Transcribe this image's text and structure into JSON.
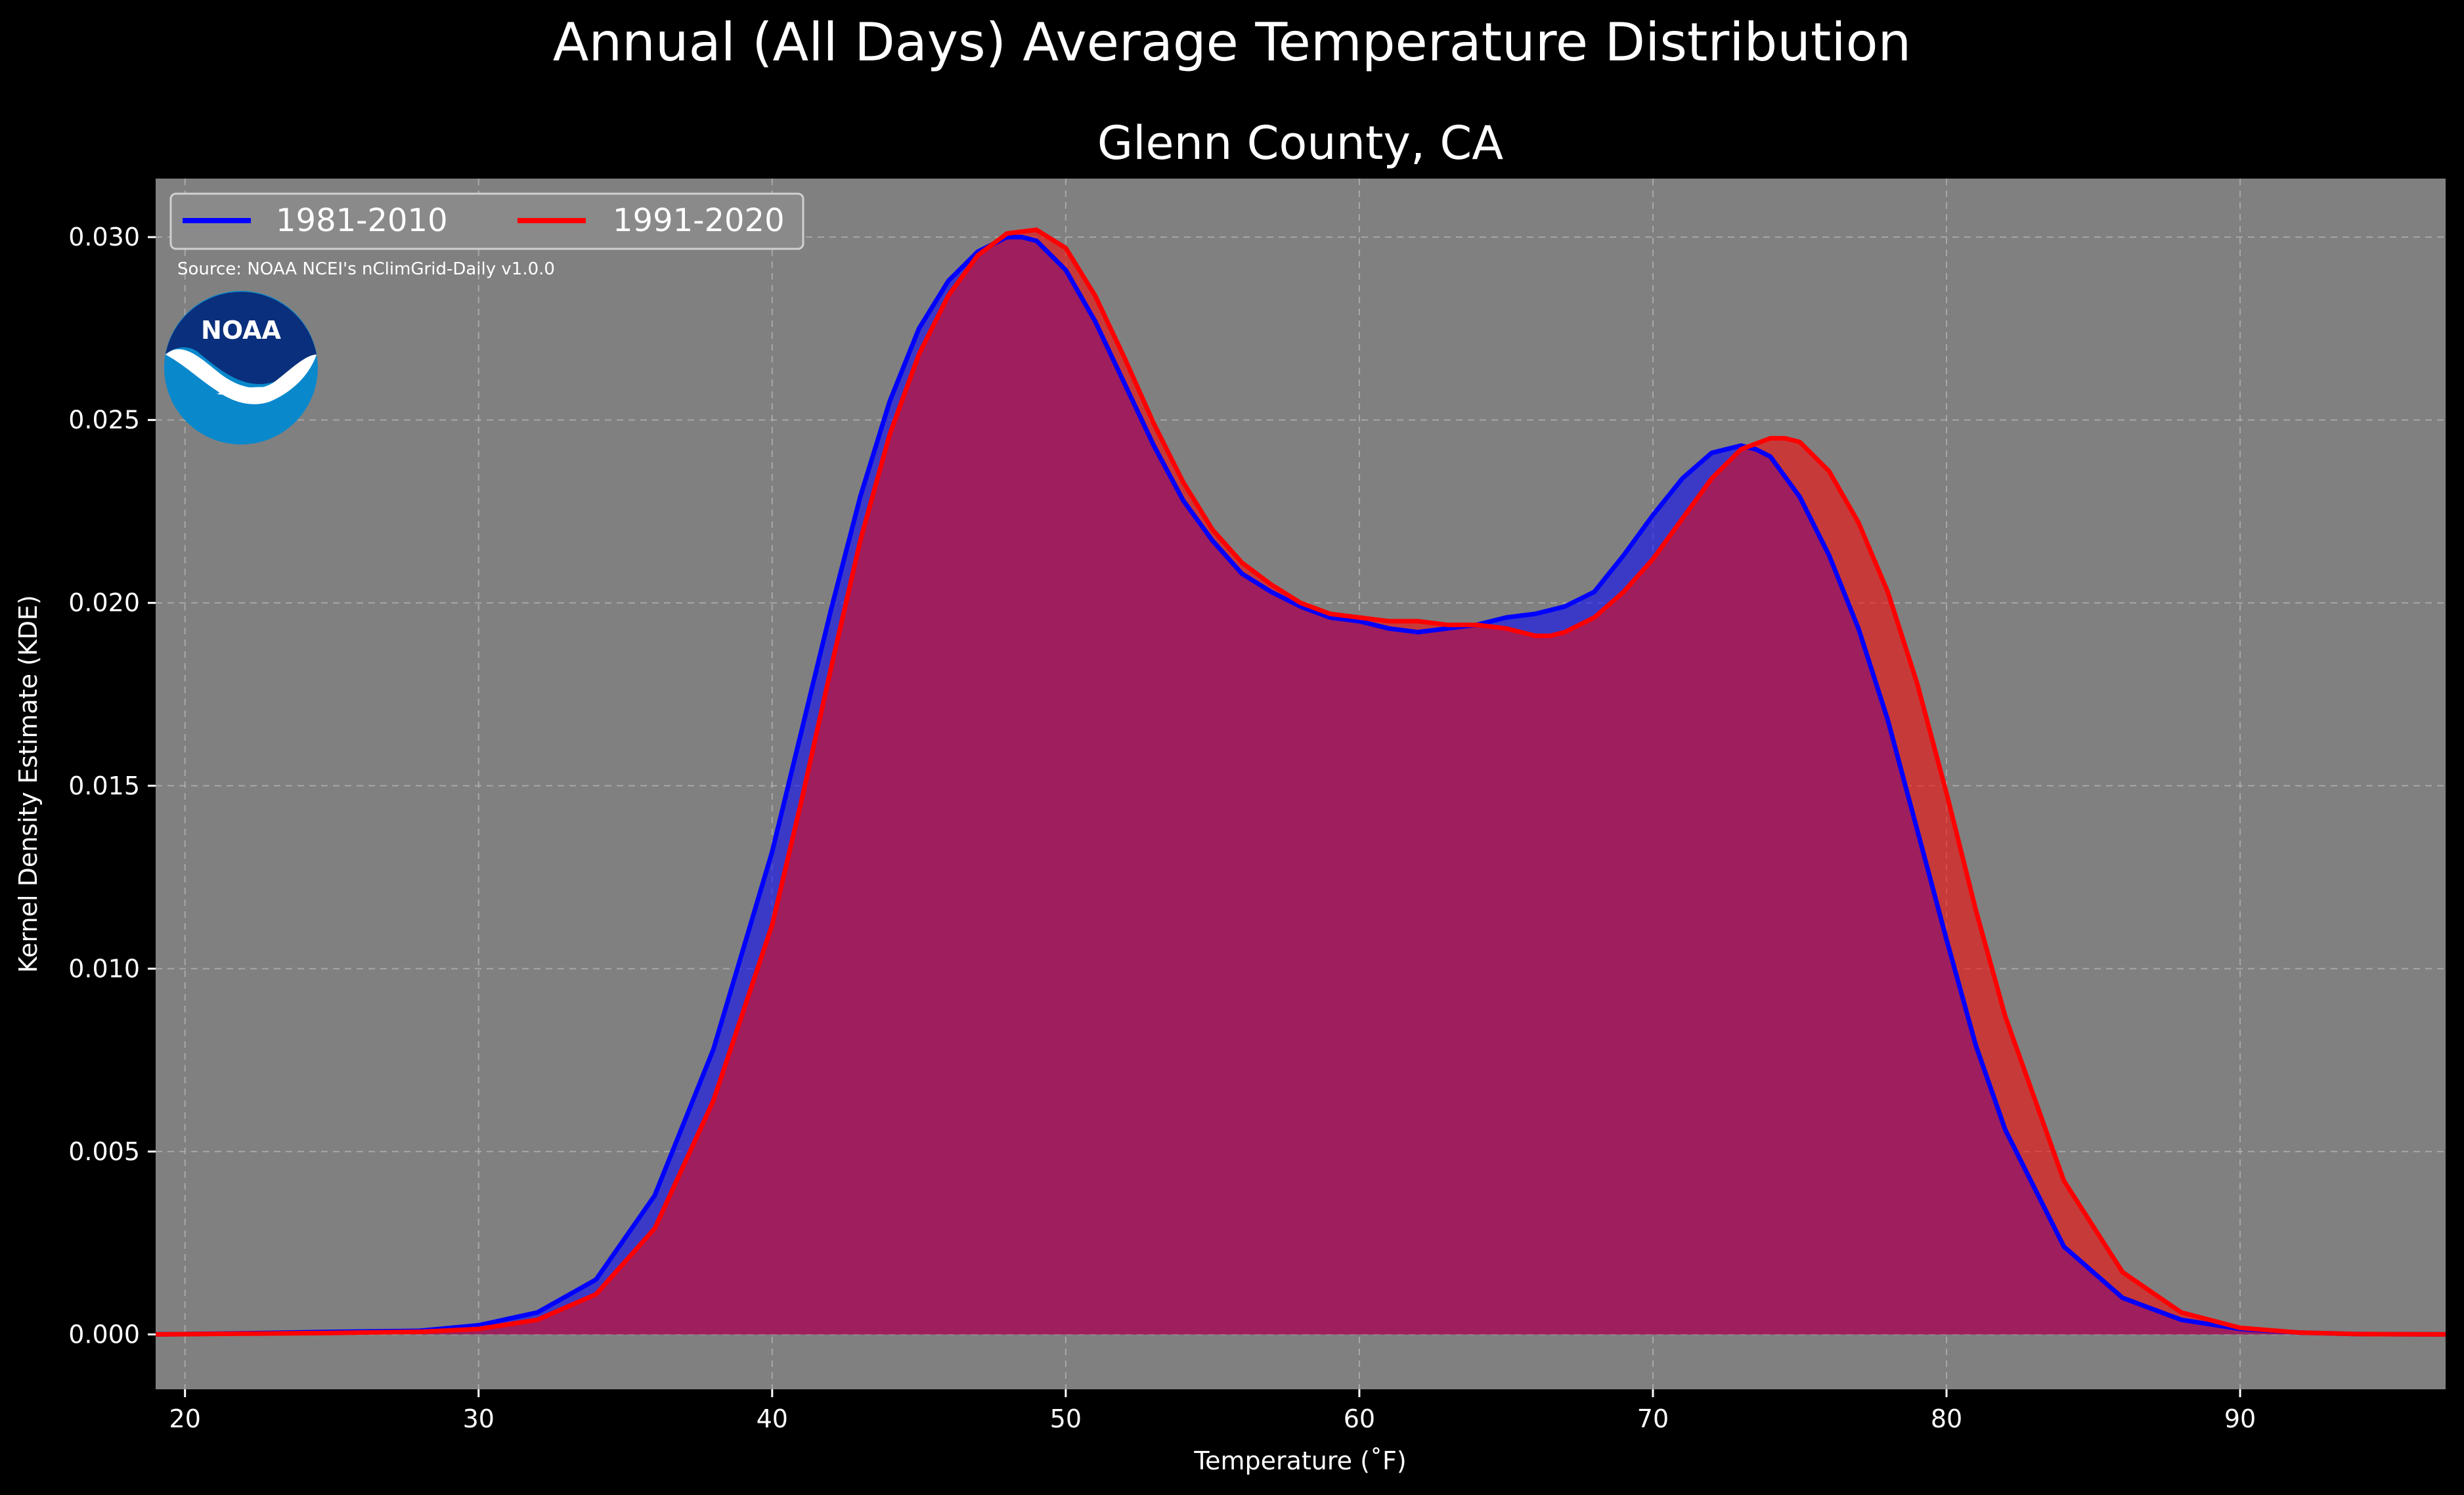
{
  "suptitle": "Annual (All Days) Average Temperature Distribution",
  "title": "Glenn County, CA",
  "source": "Source: NOAA NCEI's nClimGrid-Daily v1.0.0",
  "logo_text": "NOAA",
  "colors": {
    "background": "#000000",
    "plot_bg": "#808080",
    "series_1981": "#0000ff",
    "series_1991": "#ff0000",
    "overlap_fill": "#9e1e5e"
  },
  "chart_data": {
    "type": "area",
    "xlabel": "Temperature ($^\\circ$F)",
    "xlabel_display": "Temperature (˚F)",
    "ylabel": "Kernel Density Estimate (KDE)",
    "xlim": [
      19,
      97
    ],
    "ylim": [
      -0.0015,
      0.0316
    ],
    "xticks": [
      20,
      30,
      40,
      50,
      60,
      70,
      80,
      90
    ],
    "xtick_labels": [
      "20",
      "30",
      "40",
      "50",
      "60",
      "70",
      "80",
      "90"
    ],
    "yticks": [
      0.0,
      0.005,
      0.01,
      0.015,
      0.02,
      0.025,
      0.03
    ],
    "ytick_labels": [
      "0.000",
      "0.005",
      "0.010",
      "0.015",
      "0.020",
      "0.025",
      "0.030"
    ],
    "grid": true,
    "legend_position": "top-left",
    "series": [
      {
        "name": "1981-2010",
        "color": "#0000ff",
        "x": [
          19,
          22,
          25,
          28,
          30,
          32,
          34,
          36,
          38,
          40,
          41,
          42,
          43,
          44,
          45,
          46,
          47,
          48,
          48.5,
          49,
          50,
          51,
          52,
          53,
          54,
          55,
          56,
          57,
          58,
          59,
          60,
          61,
          62,
          63,
          64,
          65,
          66,
          67,
          68,
          69,
          70,
          71,
          72,
          73,
          73.5,
          74,
          75,
          76,
          77,
          78,
          79,
          80,
          81,
          82,
          84,
          86,
          88,
          90,
          92,
          94,
          97
        ],
        "y": [
          0.0,
          3e-05,
          7e-05,
          0.0001,
          0.00025,
          0.0006,
          0.0015,
          0.0038,
          0.0078,
          0.0132,
          0.0165,
          0.0198,
          0.0229,
          0.0255,
          0.0275,
          0.0288,
          0.0296,
          0.03,
          0.03,
          0.0299,
          0.0291,
          0.0277,
          0.026,
          0.0243,
          0.0228,
          0.0217,
          0.0208,
          0.0203,
          0.0199,
          0.0196,
          0.0195,
          0.0193,
          0.0192,
          0.0193,
          0.0194,
          0.0196,
          0.0197,
          0.0199,
          0.0203,
          0.0213,
          0.0224,
          0.0234,
          0.0241,
          0.0243,
          0.0242,
          0.024,
          0.0229,
          0.0213,
          0.0193,
          0.0168,
          0.0138,
          0.0108,
          0.0079,
          0.0056,
          0.0024,
          0.001,
          0.0004,
          0.00015,
          5e-05,
          1e-05,
          0.0
        ]
      },
      {
        "name": "1991-2020",
        "color": "#ff0000",
        "x": [
          19,
          22,
          25,
          28,
          30,
          32,
          34,
          36,
          38,
          40,
          41,
          42,
          43,
          44,
          45,
          46,
          47,
          48,
          49,
          50,
          51,
          52,
          53,
          54,
          55,
          56,
          57,
          58,
          59,
          60,
          61,
          62,
          63,
          64,
          65,
          66,
          66.5,
          67,
          68,
          69,
          70,
          71,
          72,
          73,
          74,
          74.5,
          75,
          76,
          77,
          78,
          79,
          80,
          81,
          82,
          84,
          86,
          88,
          90,
          92,
          94,
          97
        ],
        "y": [
          0.0,
          2e-05,
          4e-05,
          7e-05,
          0.00015,
          0.0004,
          0.0011,
          0.0029,
          0.0064,
          0.0112,
          0.0146,
          0.0182,
          0.0217,
          0.0246,
          0.0268,
          0.0284,
          0.0295,
          0.0301,
          0.0302,
          0.0297,
          0.0284,
          0.0267,
          0.0249,
          0.0233,
          0.022,
          0.0211,
          0.0205,
          0.02,
          0.0197,
          0.0196,
          0.0195,
          0.0195,
          0.0194,
          0.0194,
          0.0193,
          0.0191,
          0.0191,
          0.0192,
          0.0196,
          0.0203,
          0.0212,
          0.0223,
          0.0234,
          0.0242,
          0.0245,
          0.0245,
          0.0244,
          0.0236,
          0.0222,
          0.0203,
          0.0178,
          0.0148,
          0.0116,
          0.0087,
          0.0042,
          0.0017,
          0.0006,
          0.00018,
          5e-05,
          1e-05,
          0.0
        ]
      }
    ]
  }
}
